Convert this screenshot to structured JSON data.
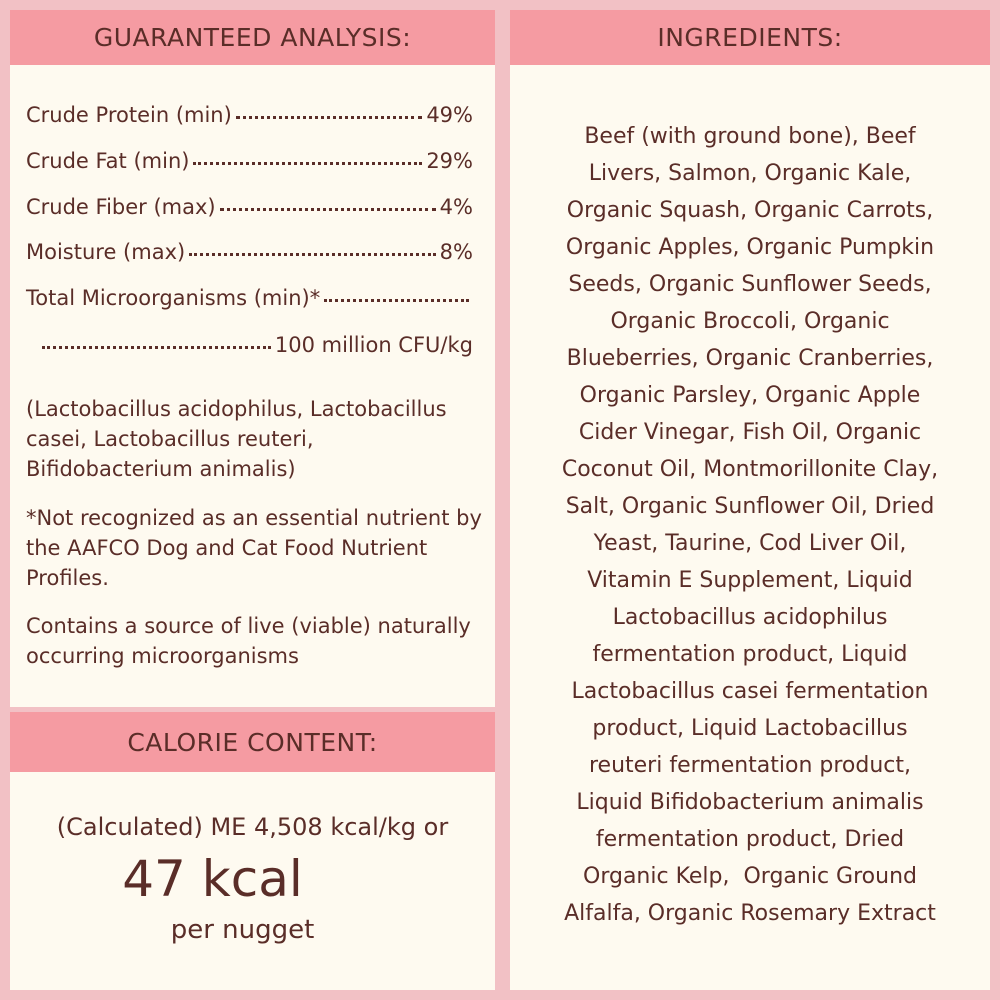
{
  "guaranteed_analysis": {
    "title": "GUARANTEED ANALYSIS:",
    "rows": [
      {
        "label": "Crude Protein (min)",
        "value": "49%"
      },
      {
        "label": "Crude Fat (min)",
        "value": "29%"
      },
      {
        "label": "Crude Fiber (max)",
        "value": "4%"
      },
      {
        "label": "Moisture (max)",
        "value": "8%"
      },
      {
        "label": "Total Microorganisms (min)*",
        "value": ""
      },
      {
        "label": "",
        "value": "100 million CFU/kg"
      }
    ],
    "strains": "(Lactobacillus acidophilus, Lactobacillus casei, Lactobacillus reuteri, Bifidobacterium animalis)",
    "footnote": "*Not recognized as an essential nutrient by the AAFCO Dog and Cat Food Nutrient Profiles.",
    "live_note": "Contains a source of live (viable) naturally occurring microorganisms"
  },
  "calorie_content": {
    "title": "CALORIE CONTENT:",
    "line1": "(Calculated) ME 4,508 kcal/kg or",
    "big": "47 kcal",
    "line3": "per nugget"
  },
  "ingredients": {
    "title": "INGREDIENTS:",
    "lines": [
      "Beef (with ground bone), Beef",
      "Livers, Salmon, Organic Kale,",
      "Organic Squash, Organic Carrots,",
      "Organic Apples, Organic Pumpkin",
      "Seeds, Organic Sunflower Seeds,",
      "Organic Broccoli, Organic",
      "Blueberries, Organic Cranberries,",
      "Organic Parsley, Organic Apple",
      "Cider Vinegar, Fish Oil, Organic",
      "Coconut Oil, Montmorillonite Clay,",
      "Salt, Organic Sunflower Oil, Dried",
      "Yeast, Taurine, Cod Liver Oil,",
      "Vitamin E Supplement, Liquid",
      "Lactobacillus acidophilus",
      "fermentation product, Liquid",
      "Lactobacillus casei fermentation",
      "product, Liquid Lactobacillus",
      "reuteri fermentation product,",
      "Liquid Bifidobacterium animalis",
      "fermentation product, Dried",
      "Organic Kelp,  Organic Ground",
      "Alfalfa, Organic Rosemary Extract"
    ]
  },
  "colors": {
    "background": "#f2c1c5",
    "header": "#f59ba2",
    "panel": "#fefaf0",
    "text": "#5a2d28"
  }
}
